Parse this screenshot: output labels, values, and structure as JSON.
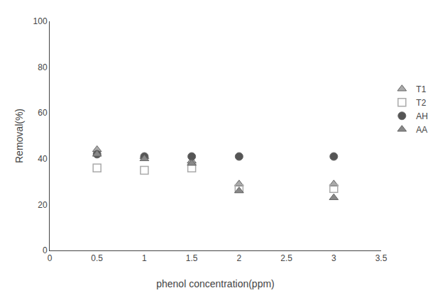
{
  "chart_data": {
    "type": "scatter",
    "x": [
      0.5,
      1.0,
      1.5,
      2.0,
      3.0
    ],
    "series": [
      {
        "name": "T1",
        "color": "#aaaaaa",
        "marker": "triangle-up",
        "values": [
          44,
          41,
          39,
          29,
          29
        ]
      },
      {
        "name": "T2",
        "color": "#aaaaaa",
        "marker": "square-open",
        "values": [
          36,
          35,
          36,
          27,
          27
        ]
      },
      {
        "name": "AH",
        "color": "#555555",
        "marker": "circle",
        "values": [
          42,
          41,
          41,
          41,
          41
        ]
      },
      {
        "name": "AA",
        "color": "#888888",
        "marker": "triangle-up",
        "values": [
          42,
          40,
          38,
          26,
          23
        ]
      }
    ],
    "xlabel": "phenol concentration(ppm)",
    "ylabel": "Removal(%)",
    "xlim": [
      0,
      3.5
    ],
    "ylim": [
      0,
      100
    ],
    "xticks": [
      0,
      0.5,
      1.0,
      1.5,
      2.0,
      2.5,
      3.0,
      3.5
    ],
    "yticks": [
      0,
      20,
      40,
      60,
      80,
      100
    ],
    "grid": false,
    "legend": "right"
  }
}
